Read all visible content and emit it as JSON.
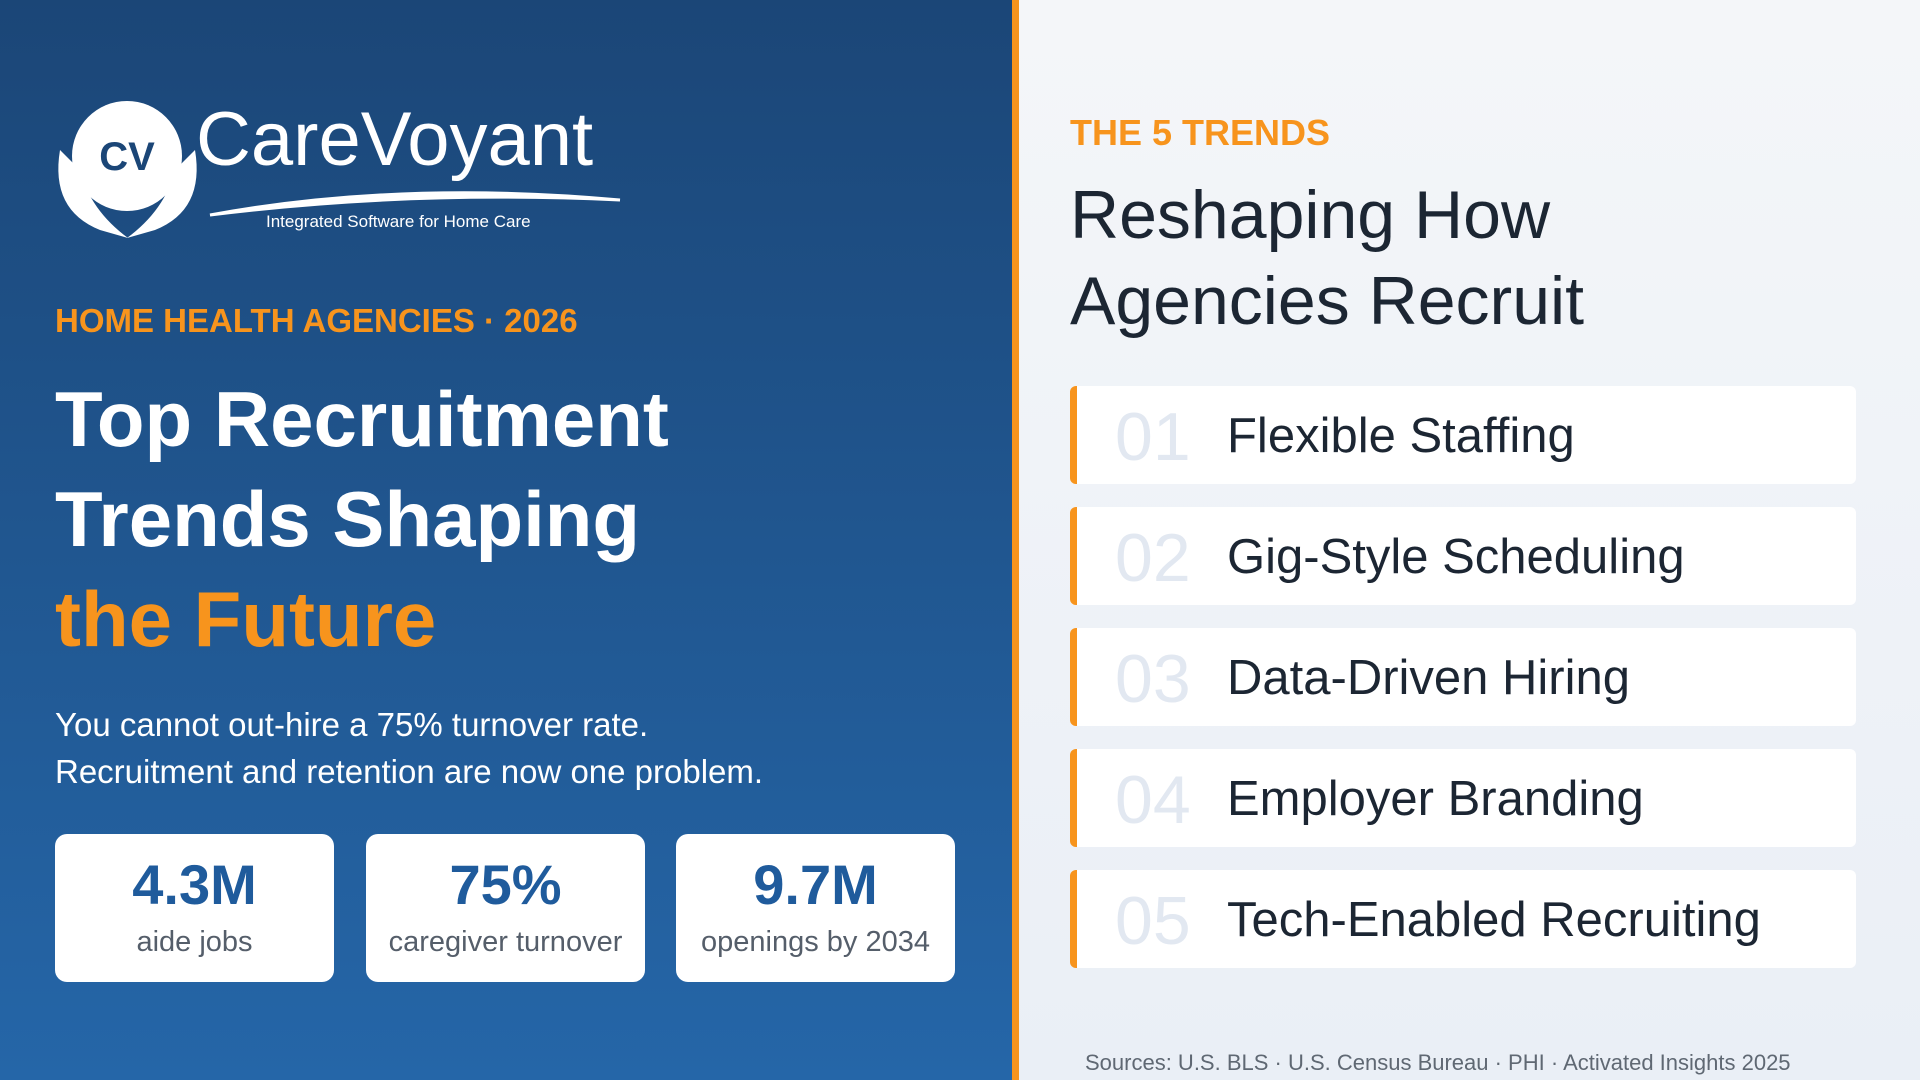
{
  "logo": {
    "mark": "CV",
    "name": "CareVoyant",
    "tagline": "Integrated Software for Home Care"
  },
  "left": {
    "eyebrow": "HOME HEALTH AGENCIES · 2026",
    "title": [
      "Top Recruitment",
      "Trends Shaping",
      "the Future"
    ],
    "description": [
      "You cannot out-hire a 75% turnover rate.",
      "Recruitment and retention are now one problem."
    ],
    "stats": [
      {
        "value": "4.3M",
        "label": "aide jobs"
      },
      {
        "value": "75%",
        "label": "caregiver turnover"
      },
      {
        "value": "9.7M",
        "label": "openings by 2034"
      }
    ]
  },
  "right": {
    "eyebrow": "THE 5 TRENDS",
    "heading": [
      "Reshaping How",
      "Agencies Recruit"
    ],
    "trends": [
      {
        "number": "01",
        "label": "Flexible Staffing"
      },
      {
        "number": "02",
        "label": "Gig-Style Scheduling"
      },
      {
        "number": "03",
        "label": "Data-Driven Hiring"
      },
      {
        "number": "04",
        "label": "Employer Branding"
      },
      {
        "number": "05",
        "label": "Tech-Enabled Recruiting"
      }
    ],
    "sources": "Sources: U.S. BLS · U.S. Census Bureau · PHI · Activated Insights 2025"
  }
}
